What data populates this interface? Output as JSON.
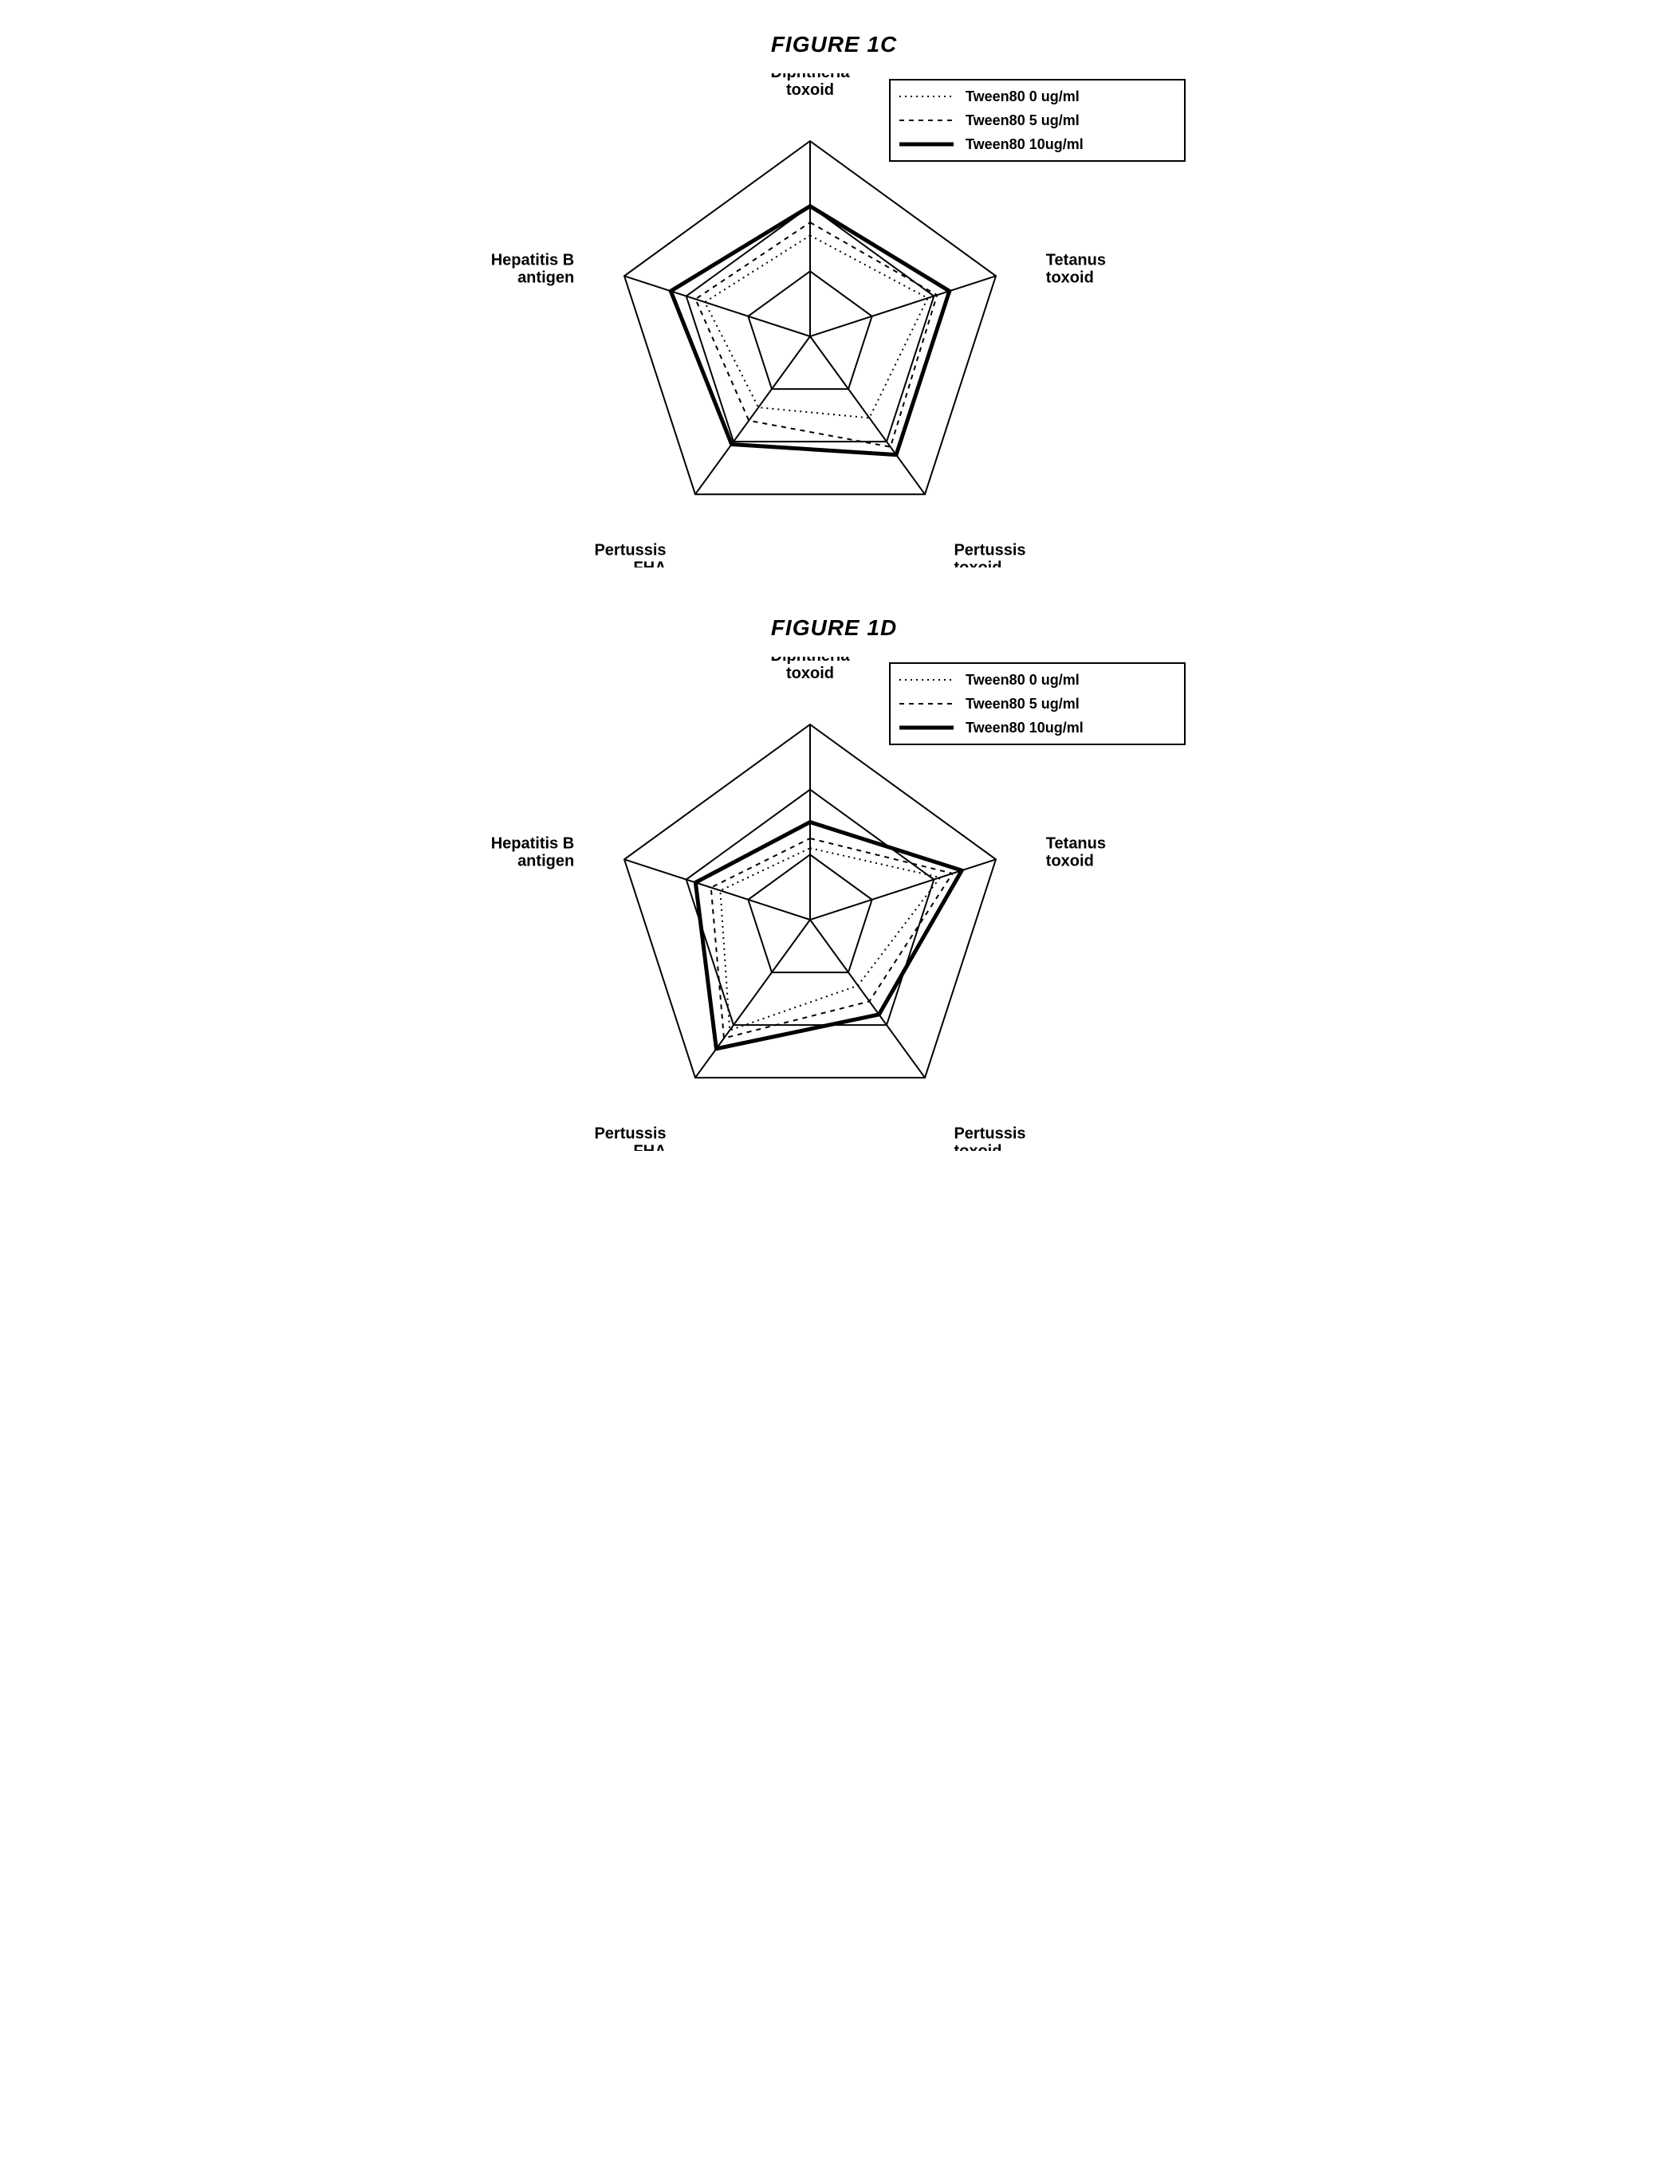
{
  "page": {
    "background_color": "#ffffff"
  },
  "figure1c": {
    "title": "FIGURE 1C",
    "type": "radar",
    "axes": [
      "Diphtheria toxoid",
      "Tetanus toxoid",
      "Pertussis toxoid",
      "Pertussis FHA",
      "Hepatitis B antigen"
    ],
    "rings": 3,
    "max_value": 3,
    "grid_color": "#000000",
    "grid_stroke_width": 2,
    "axis_label_fontsize": 20,
    "axis_label_fontweight": "bold",
    "axis_label_color": "#000000",
    "legend": {
      "border_color": "#000000",
      "background": "#ffffff",
      "fontsize": 18,
      "fontweight": "bold",
      "items": [
        {
          "label": "Tween80  0  ug/ml",
          "stroke": "#000000",
          "dash": "2,5",
          "width": 2
        },
        {
          "label": "Tween80  5  ug/ml",
          "stroke": "#000000",
          "dash": "6,6",
          "width": 2
        },
        {
          "label": "Tween80  10ug/ml",
          "stroke": "#000000",
          "dash": "",
          "width": 5
        }
      ]
    },
    "series": [
      {
        "name": "Tween80 0 ug/ml",
        "values": [
          1.55,
          1.9,
          1.55,
          1.35,
          1.7
        ],
        "stroke": "#000000",
        "dash": "2,5",
        "width": 2
      },
      {
        "name": "Tween80 5 ug/ml",
        "values": [
          1.75,
          2.05,
          2.1,
          1.6,
          1.85
        ],
        "stroke": "#000000",
        "dash": "6,6",
        "width": 2
      },
      {
        "name": "Tween80 10 ug/ml",
        "values": [
          2.0,
          2.25,
          2.25,
          2.05,
          2.25
        ],
        "stroke": "#000000",
        "dash": "",
        "width": 5
      }
    ]
  },
  "figure1d": {
    "title": "FIGURE 1D",
    "type": "radar",
    "axes": [
      "Diphtheria toxoid",
      "Tetanus toxoid",
      "Pertussis toxoid",
      "Pertussis FHA",
      "Hepatitis B antigen"
    ],
    "rings": 3,
    "max_value": 3,
    "grid_color": "#000000",
    "grid_stroke_width": 2,
    "axis_label_fontsize": 20,
    "axis_label_fontweight": "bold",
    "axis_label_color": "#000000",
    "legend": {
      "border_color": "#000000",
      "background": "#ffffff",
      "fontsize": 18,
      "fontweight": "bold",
      "items": [
        {
          "label": "Tween80  0  ug/ml",
          "stroke": "#000000",
          "dash": "2,5",
          "width": 2
        },
        {
          "label": "Tween80  5  ug/ml",
          "stroke": "#000000",
          "dash": "6,6",
          "width": 2
        },
        {
          "label": "Tween80  10ug/ml",
          "stroke": "#000000",
          "dash": "",
          "width": 5
        }
      ]
    },
    "series": [
      {
        "name": "Tween80 0 ug/ml",
        "values": [
          1.1,
          2.1,
          1.25,
          2.1,
          1.45
        ],
        "stroke": "#000000",
        "dash": "2,5",
        "width": 2
      },
      {
        "name": "Tween80 5 ug/ml",
        "values": [
          1.25,
          2.3,
          1.55,
          2.25,
          1.6
        ],
        "stroke": "#000000",
        "dash": "6,6",
        "width": 2
      },
      {
        "name": "Tween80 10 ug/ml",
        "values": [
          1.5,
          2.45,
          1.8,
          2.45,
          1.85
        ],
        "stroke": "#000000",
        "dash": "",
        "width": 5
      }
    ]
  }
}
